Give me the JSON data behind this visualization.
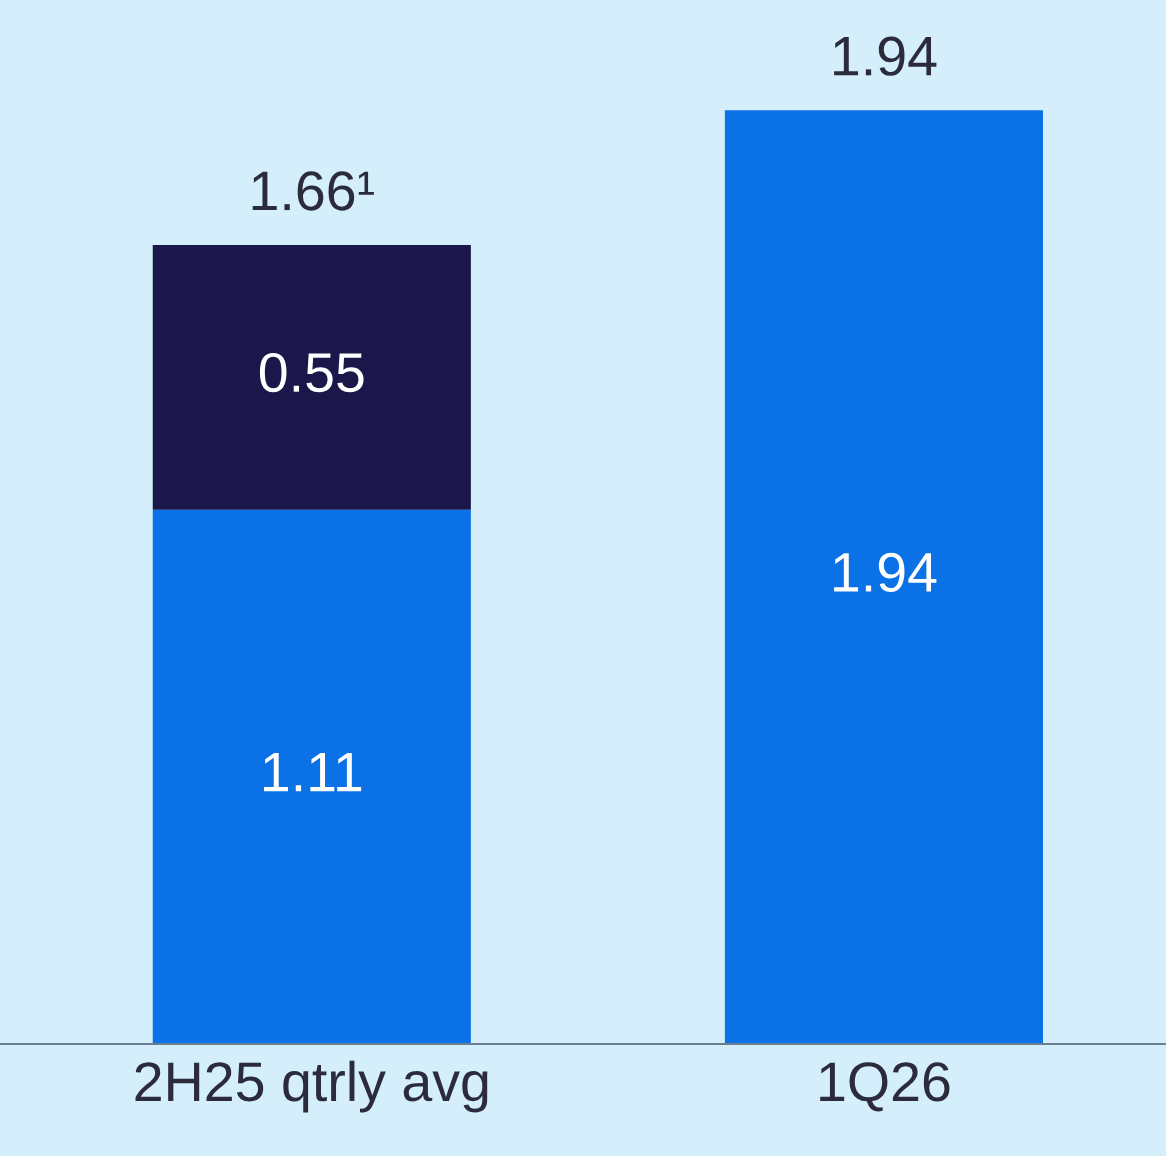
{
  "chart_data": {
    "type": "bar",
    "stacked": true,
    "tick_labels": "x",
    "data_labels": true,
    "grid": false,
    "legend": false,
    "categories": [
      "2H25 qtrly avg",
      "1Q26"
    ],
    "series": [
      {
        "color": "#0a72e6",
        "values": [
          1.11,
          1.94
        ]
      },
      {
        "color": "#1c174a",
        "values": [
          0.55,
          null
        ]
      }
    ],
    "totals": [
      "1.66¹",
      "1.94"
    ]
  }
}
